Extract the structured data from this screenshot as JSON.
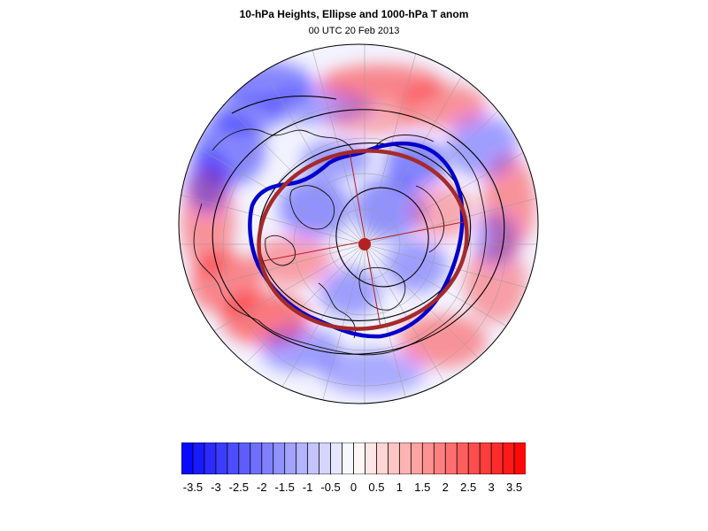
{
  "title": "10-hPa Heights, Ellipse and 1000-hPa T anom",
  "subtitle": "00 UTC 20 Feb 2013",
  "map": {
    "projection": "north-polar-stereographic",
    "shading_field": "1000-hPa temperature anomaly",
    "overlays": [
      "10-hPa height contours",
      "polar vortex edge contour",
      "fitted ellipse",
      "ellipse axes"
    ],
    "colors": {
      "vortex_edge": "#0000cc",
      "ellipse": "#a52a2a",
      "negative": "#0000ff",
      "positive": "#ff0000"
    }
  },
  "colorbar": {
    "levels": [
      -3.75,
      -3.5,
      -3.25,
      -3,
      -2.75,
      -2.5,
      -2.25,
      -2,
      -1.75,
      -1.5,
      -1.25,
      -1,
      -0.75,
      -0.5,
      -0.25,
      0,
      0.25,
      0.5,
      0.75,
      1,
      1.25,
      1.5,
      1.75,
      2,
      2.25,
      2.5,
      2.75,
      3,
      3.25,
      3.5,
      3.75
    ],
    "labels": [
      "-3.5",
      "-3",
      "-2.5",
      "-2",
      "-1.5",
      "-1",
      "-0.5",
      "0",
      "0.5",
      "1",
      "1.5",
      "2",
      "2.5",
      "3",
      "3.5"
    ],
    "min_color": "#0000ff",
    "mid_color": "#ffffff",
    "max_color": "#ff0000"
  }
}
